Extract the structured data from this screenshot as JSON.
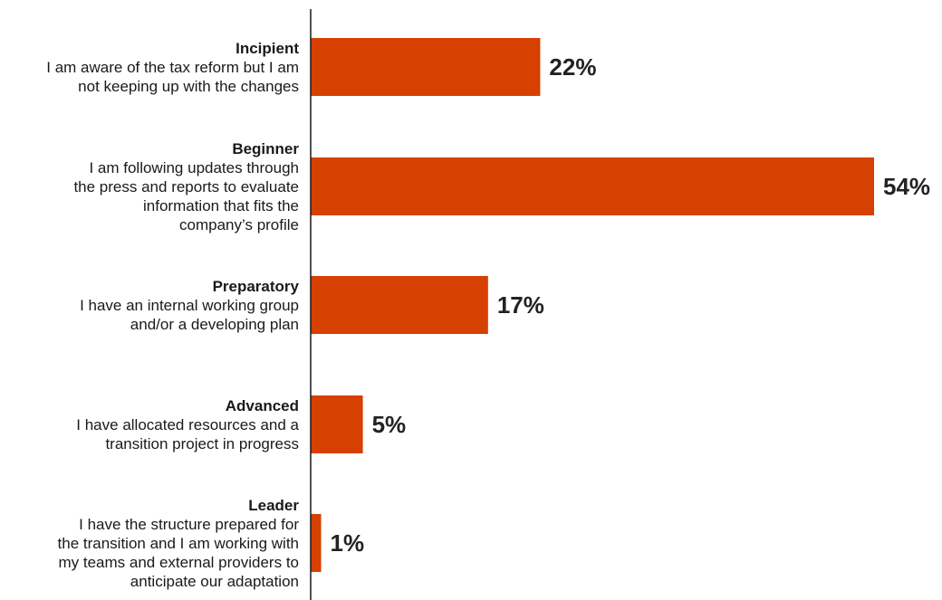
{
  "chart_data": {
    "type": "bar",
    "orientation": "horizontal",
    "categories": [
      {
        "name": "Incipient",
        "description": [
          "I am aware of the tax reform but I am",
          "not keeping up with the changes"
        ]
      },
      {
        "name": "Beginner",
        "description": [
          "I am following updates through",
          "the press and reports to evaluate",
          "information that fits the",
          "company’s profile"
        ]
      },
      {
        "name": "Preparatory",
        "description": [
          "I have an internal working group",
          "and/or a developing plan"
        ]
      },
      {
        "name": "Advanced",
        "description": [
          "I have allocated resources and a",
          "transition project in progress"
        ]
      },
      {
        "name": "Leader",
        "description": [
          "I have the structure prepared for",
          "the transition and I am working with",
          "my teams and external providers to",
          "anticipate our adaptation"
        ]
      }
    ],
    "values": [
      22,
      54,
      17,
      5,
      1
    ],
    "value_labels": [
      "22%",
      "54%",
      "17%",
      "5%",
      "1%"
    ],
    "value_unit": "%",
    "xlim": [
      0,
      54
    ],
    "grid": false,
    "legend": "none",
    "bar_color": "#D64000"
  }
}
